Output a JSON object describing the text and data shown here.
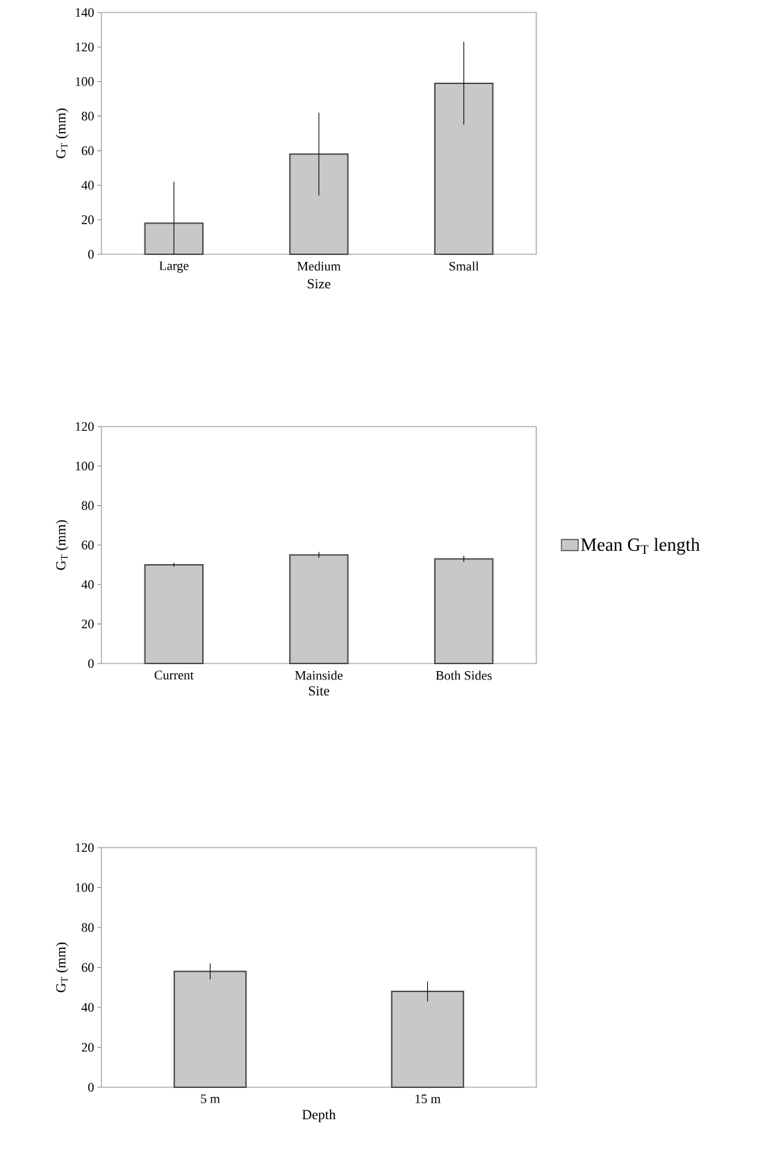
{
  "chart_data": [
    {
      "type": "bar",
      "categories": [
        "Large",
        "Medium",
        "Small"
      ],
      "xlabel": "Size",
      "ylabel": "G$_{T}$ (mm)",
      "ylim": [
        0,
        140
      ],
      "yticks": [
        0,
        20,
        40,
        60,
        80,
        100,
        120,
        140
      ],
      "series": [
        {
          "color": "#c8c8c8",
          "values": [
            18,
            58,
            99
          ],
          "errors": [
            [
              0,
              42
            ],
            24,
            24
          ]
        }
      ]
    },
    {
      "type": "bar",
      "categories": [
        "Current",
        "Mainside",
        "Both Sides"
      ],
      "xlabel": "Site",
      "ylabel": "G$_{T}$ (mm)",
      "ylim": [
        0,
        120
      ],
      "yticks": [
        0,
        20,
        40,
        60,
        80,
        100,
        120
      ],
      "legend": "right",
      "series": [
        {
          "name": "Mean G$_{T}$ length",
          "color": "#c8c8c8",
          "values": [
            50,
            55,
            53
          ],
          "errors": [
            1,
            1.5,
            1.5
          ]
        }
      ]
    },
    {
      "type": "bar",
      "categories": [
        "5 m",
        "15 m"
      ],
      "xlabel": "Depth",
      "ylabel": "G$_{T}$ (mm)",
      "ylim": [
        0,
        120
      ],
      "yticks": [
        0,
        20,
        40,
        60,
        80,
        100,
        120
      ],
      "series": [
        {
          "color": "#c8c8c8",
          "values": [
            58,
            48
          ],
          "errors": [
            4,
            5
          ]
        }
      ]
    }
  ]
}
